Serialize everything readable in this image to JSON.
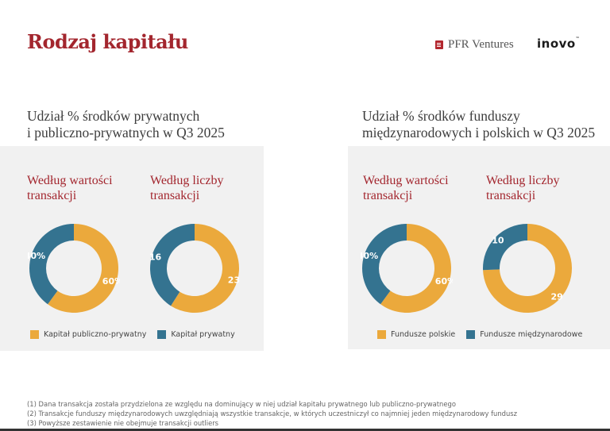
{
  "header": {
    "title": "Rodzaj kapitału",
    "logo_pfr": "PFR Ventures",
    "logo_inovo": "inovo"
  },
  "colors": {
    "orange": "#eba93c",
    "blue": "#347390",
    "accent": "#a3262e"
  },
  "sections": [
    {
      "title_line1": "Udział % środków prywatnych",
      "title_line2": "i publiczno-prywatnych w Q3 2025",
      "sub_left_1": "Według wartości",
      "sub_left_2": "transakcji",
      "sub_right_1": "Według liczby",
      "sub_right_2": "transakcji",
      "legend": [
        "Kapitał publiczno-prywatny",
        "Kapitał prywatny"
      ]
    },
    {
      "title_line1": "Udział % środków funduszy",
      "title_line2": "międzynarodowych i polskich w Q3 2025",
      "sub_left_1": "Według wartości",
      "sub_left_2": "transakcji",
      "sub_right_1": "Według liczby",
      "sub_right_2": "transakcji",
      "legend": [
        "Fundusze polskie",
        "Fundusze międzynarodowe"
      ]
    }
  ],
  "chart_data": [
    {
      "type": "pie",
      "title": "Według wartości transakcji",
      "categories": [
        "Kapitał publiczno-prywatny",
        "Kapitał prywatny"
      ],
      "values": [
        60,
        40
      ],
      "labels": [
        "60%",
        "40%"
      ]
    },
    {
      "type": "pie",
      "title": "Według liczby transakcji",
      "categories": [
        "Kapitał publiczno-prywatny",
        "Kapitał prywatny"
      ],
      "values": [
        23,
        16
      ],
      "labels": [
        "23",
        "16"
      ]
    },
    {
      "type": "pie",
      "title": "Według wartości transakcji",
      "categories": [
        "Fundusze polskie",
        "Fundusze międzynarodowe"
      ],
      "values": [
        60,
        40
      ],
      "labels": [
        "60%",
        "40%"
      ]
    },
    {
      "type": "pie",
      "title": "Według liczby transakcji",
      "categories": [
        "Fundusze polskie",
        "Fundusze międzynarodowe"
      ],
      "values": [
        29,
        10
      ],
      "labels": [
        "29",
        "10"
      ]
    }
  ],
  "footnotes": [
    "(1) Dana transakcja została przydzielona ze względu na dominujący w niej udział kapitału prywatnego lub publiczno-prywatnego",
    "(2) Transakcje funduszy międzynarodowych uwzględniają wszystkie transakcje, w których uczestniczył co najmniej jeden międzynarodowy fundusz",
    "(3) Powyższe zestawienie nie obejmuje transakcji outliers"
  ]
}
